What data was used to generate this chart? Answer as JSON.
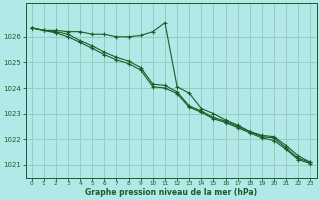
{
  "background_color": "#b3e8e8",
  "grid_color": "#99ccbb",
  "line_color": "#1a5c28",
  "xlabel": "Graphe pression niveau de la mer (hPa)",
  "xlim": [
    -0.5,
    23.5
  ],
  "ylim": [
    1020.5,
    1027.3
  ],
  "yticks": [
    1021,
    1022,
    1023,
    1024,
    1025,
    1026
  ],
  "xticks": [
    0,
    1,
    2,
    3,
    4,
    5,
    6,
    7,
    8,
    9,
    10,
    11,
    12,
    13,
    14,
    15,
    16,
    17,
    18,
    19,
    20,
    21,
    22,
    23
  ],
  "series1": [
    1026.35,
    1026.25,
    1026.25,
    1026.2,
    1026.2,
    1026.1,
    1026.1,
    1026.0,
    1026.0,
    1026.05,
    1026.2,
    1026.55,
    1024.05,
    1023.8,
    1023.2,
    1023.0,
    1022.75,
    1022.55,
    1022.3,
    1022.15,
    1022.1,
    1021.75,
    1021.35,
    1021.1
  ],
  "series2": [
    1026.35,
    1026.25,
    1026.2,
    1026.1,
    1025.85,
    1025.65,
    1025.4,
    1025.2,
    1025.05,
    1024.8,
    1024.15,
    1024.1,
    1023.85,
    1023.3,
    1023.1,
    1022.85,
    1022.7,
    1022.5,
    1022.3,
    1022.1,
    1022.05,
    1021.65,
    1021.25,
    1021.1
  ],
  "series3": [
    1026.35,
    1026.25,
    1026.15,
    1026.0,
    1025.78,
    1025.55,
    1025.3,
    1025.1,
    1024.95,
    1024.7,
    1024.05,
    1024.0,
    1023.78,
    1023.25,
    1023.05,
    1022.8,
    1022.65,
    1022.45,
    1022.25,
    1022.05,
    1021.95,
    1021.6,
    1021.2,
    1021.05
  ]
}
